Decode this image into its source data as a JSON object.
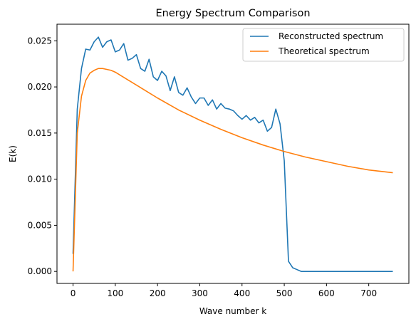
{
  "chart_data": {
    "type": "line",
    "title": "Energy Spectrum Comparison",
    "xlabel": "Wave number k",
    "ylabel": "E(k)",
    "xlim": [
      -38,
      795
    ],
    "ylim": [
      -0.0013,
      0.0268
    ],
    "xticks": [
      0,
      100,
      200,
      300,
      400,
      500,
      600,
      700
    ],
    "yticks": [
      0.0,
      0.005,
      0.01,
      0.015,
      0.02,
      0.025
    ],
    "ytick_labels": [
      "0.000",
      "0.005",
      "0.010",
      "0.015",
      "0.020",
      "0.025"
    ],
    "grid": false,
    "legend_position": "top-right",
    "series": [
      {
        "name": "Reconstructed spectrum",
        "color": "#1f77b4",
        "x": [
          0,
          10,
          20,
          30,
          40,
          50,
          60,
          70,
          80,
          90,
          100,
          110,
          120,
          130,
          140,
          150,
          160,
          170,
          180,
          190,
          200,
          210,
          220,
          230,
          240,
          250,
          260,
          270,
          280,
          290,
          300,
          310,
          320,
          330,
          340,
          350,
          360,
          370,
          380,
          390,
          400,
          410,
          420,
          430,
          440,
          450,
          460,
          470,
          480,
          490,
          500,
          510,
          520,
          530,
          540,
          550,
          560,
          570,
          580,
          590,
          600,
          610,
          620,
          630,
          640,
          650,
          660,
          670,
          680,
          690,
          700,
          710,
          720,
          730,
          740,
          750,
          757
        ],
        "y": [
          0.0019,
          0.0176,
          0.022,
          0.0241,
          0.024,
          0.0249,
          0.0254,
          0.0243,
          0.0249,
          0.0251,
          0.0238,
          0.024,
          0.0247,
          0.0229,
          0.0231,
          0.0235,
          0.022,
          0.0217,
          0.023,
          0.0211,
          0.0207,
          0.0217,
          0.0212,
          0.0196,
          0.0211,
          0.0194,
          0.0191,
          0.0199,
          0.0189,
          0.0182,
          0.0188,
          0.0188,
          0.018,
          0.0186,
          0.0176,
          0.0182,
          0.0177,
          0.0176,
          0.0174,
          0.0169,
          0.0165,
          0.0169,
          0.0164,
          0.0167,
          0.0161,
          0.0164,
          0.0152,
          0.0156,
          0.0176,
          0.016,
          0.012,
          0.0011,
          0.0004,
          0.0002,
          0.0,
          0.0,
          0.0,
          0.0,
          0.0,
          0.0,
          0.0,
          0.0,
          0.0,
          0.0,
          0.0,
          0.0,
          0.0,
          0.0,
          0.0,
          0.0,
          0.0,
          0.0,
          0.0,
          0.0,
          0.0,
          0.0,
          0.0
        ]
      },
      {
        "name": "Theoretical spectrum",
        "color": "#ff7f0e",
        "x": [
          0,
          10,
          20,
          30,
          40,
          50,
          60,
          70,
          80,
          90,
          100,
          125,
          150,
          175,
          200,
          250,
          300,
          350,
          400,
          450,
          500,
          550,
          600,
          650,
          700,
          757
        ],
        "y": [
          0.0,
          0.015,
          0.019,
          0.0207,
          0.0215,
          0.0218,
          0.022,
          0.022,
          0.0219,
          0.0218,
          0.0216,
          0.0209,
          0.0202,
          0.0195,
          0.0188,
          0.0175,
          0.0164,
          0.0154,
          0.0145,
          0.0137,
          0.013,
          0.0124,
          0.0119,
          0.0114,
          0.011,
          0.0107
        ]
      }
    ]
  }
}
